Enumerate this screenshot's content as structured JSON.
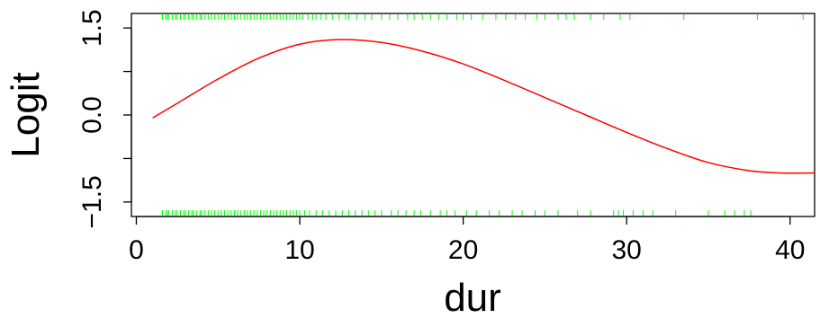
{
  "chart_data": {
    "type": "line",
    "xlabel": "dur",
    "ylabel": "Logit",
    "xlim": [
      -0.3,
      41.5
    ],
    "ylim": [
      -1.75,
      1.75
    ],
    "x_ticks": [
      {
        "value": 0,
        "label": "0"
      },
      {
        "value": 10,
        "label": "10"
      },
      {
        "value": 20,
        "label": "20"
      },
      {
        "value": 30,
        "label": "30"
      },
      {
        "value": 40,
        "label": "40"
      }
    ],
    "y_ticks": [
      {
        "value": -1.5,
        "label": "−1.5"
      },
      {
        "value": -0.75,
        "label": ""
      },
      {
        "value": 0.0,
        "label": "0.0"
      },
      {
        "value": 0.75,
        "label": ""
      },
      {
        "value": 1.5,
        "label": "1.5"
      }
    ],
    "grid": false,
    "line_color": "#ff0000",
    "rug_color": "#00ff00",
    "series": [
      {
        "x": [
          1.0,
          2.5,
          5.0,
          7.5,
          10.0,
          12.5,
          15.0,
          17.5,
          20.0,
          22.5,
          25.0,
          27.5,
          30.0,
          32.5,
          35.0,
          37.5,
          39.5,
          41.5
        ],
        "y": [
          -0.05,
          0.2,
          0.62,
          0.98,
          1.22,
          1.3,
          1.25,
          1.1,
          0.88,
          0.6,
          0.3,
          0.0,
          -0.3,
          -0.58,
          -0.82,
          -0.96,
          -1.0,
          -1.0
        ]
      }
    ],
    "rug_top": [
      1.6,
      1.8,
      1.9,
      2.0,
      2.2,
      2.4,
      2.5,
      2.7,
      2.9,
      3.0,
      3.2,
      3.4,
      3.5,
      3.7,
      3.9,
      4.0,
      4.2,
      4.4,
      4.6,
      4.8,
      5.0,
      5.2,
      5.4,
      5.6,
      5.8,
      6.0,
      6.2,
      6.4,
      6.6,
      6.8,
      7.0,
      7.2,
      7.4,
      7.6,
      7.8,
      8.0,
      8.2,
      8.4,
      8.6,
      8.8,
      9.0,
      9.2,
      9.4,
      9.6,
      9.8,
      10.0,
      10.2,
      10.5,
      10.8,
      11.0,
      11.3,
      11.6,
      12.0,
      12.4,
      12.8,
      13.0,
      13.5,
      14.0,
      14.4,
      15.0,
      15.5,
      16.0,
      16.6,
      17.0,
      17.5,
      18.0,
      18.5,
      19.0,
      19.6,
      20.0,
      20.5,
      21.2,
      22.0,
      22.6,
      23.2,
      23.8,
      24.5,
      25.0,
      25.8,
      26.3,
      26.8,
      27.8,
      28.6,
      29.6,
      30.2,
      33.5,
      38.0,
      40.8
    ],
    "rug_bottom": [
      1.6,
      1.8,
      1.9,
      2.0,
      2.2,
      2.4,
      2.5,
      2.7,
      2.9,
      3.0,
      3.2,
      3.4,
      3.5,
      3.7,
      3.9,
      4.0,
      4.2,
      4.4,
      4.6,
      4.8,
      5.0,
      5.2,
      5.4,
      5.6,
      5.8,
      6.0,
      6.2,
      6.4,
      6.6,
      6.8,
      7.0,
      7.2,
      7.4,
      7.6,
      7.8,
      8.0,
      8.2,
      8.4,
      8.6,
      8.8,
      9.0,
      9.2,
      9.4,
      9.6,
      9.8,
      10.0,
      10.3,
      10.6,
      11.0,
      11.4,
      11.8,
      12.2,
      12.6,
      13.0,
      13.4,
      13.8,
      14.2,
      14.6,
      15.0,
      15.6,
      16.0,
      16.5,
      17.0,
      17.4,
      18.0,
      18.6,
      19.0,
      19.5,
      20.2,
      20.8,
      21.6,
      22.2,
      23.0,
      23.6,
      24.4,
      25.0,
      25.8,
      27.0,
      27.8,
      29.2,
      29.5,
      29.8,
      30.4,
      31.0,
      31.6,
      33.0,
      35.0,
      36.0,
      36.6,
      37.2,
      37.6
    ]
  }
}
